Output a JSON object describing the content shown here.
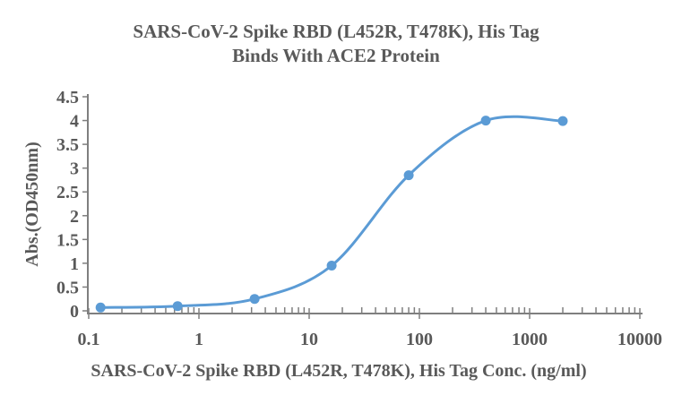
{
  "chart_data": {
    "type": "line",
    "title_lines": [
      "SARS-CoV-2 Spike RBD (L452R, T478K), His Tag",
      "Binds With ACE2 Protein"
    ],
    "xlabel": "SARS-CoV-2 Spike RBD (L452R, T478K), His Tag Conc. (ng/ml)",
    "ylabel": "Abs.(OD450nm)",
    "x_scale": "log",
    "xlim": [
      0.1,
      10000
    ],
    "ylim": [
      0,
      4.5
    ],
    "x_tick_values": [
      0.1,
      1,
      10,
      100,
      1000,
      10000
    ],
    "x_tick_labels": [
      "0.1",
      "1",
      "10",
      "100",
      "1000",
      "10000"
    ],
    "y_tick_values": [
      0,
      0.5,
      1,
      1.5,
      2,
      2.5,
      3,
      3.5,
      4,
      4.5
    ],
    "y_tick_labels": [
      "0",
      "0.5",
      "1",
      "1.5",
      "2",
      "2.5",
      "3",
      "3.5",
      "4",
      "4.5"
    ],
    "grid": false,
    "legend": "none",
    "series": [
      {
        "x": [
          0.128,
          0.64,
          3.2,
          16,
          80,
          400,
          2000
        ],
        "y": [
          0.07,
          0.1,
          0.25,
          0.95,
          2.85,
          4.0,
          3.99
        ]
      }
    ],
    "colors": {
      "line": "#5B9BD5",
      "marker": "#5B9BD5",
      "axis": "#7F7F7F",
      "text": "#595959",
      "background": "#FFFFFF"
    }
  }
}
